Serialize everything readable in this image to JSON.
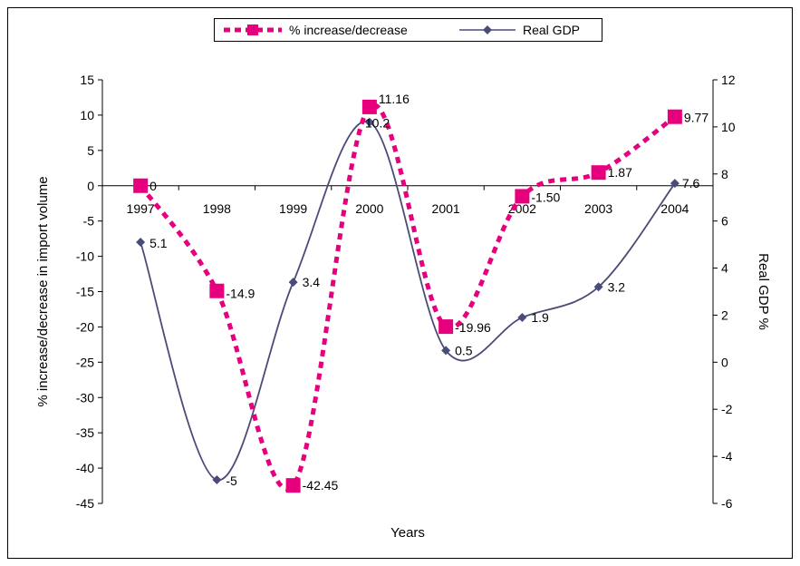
{
  "chart_data": {
    "type": "line",
    "x": [
      "1997",
      "1998",
      "1999",
      "2000",
      "2001",
      "2002",
      "2003",
      "2004"
    ],
    "xlabel": "Years",
    "ylabel_left": "% increase/decrease in import volume",
    "ylabel_right": "Real GDP %",
    "ylim_left": [
      -45,
      15
    ],
    "yticks_left": [
      "15",
      "10",
      "5",
      "0",
      "-5",
      "-10",
      "-15",
      "-20",
      "-25",
      "-30",
      "-35",
      "-40",
      "-45"
    ],
    "ylim_right": [
      -6,
      12
    ],
    "yticks_right": [
      "12",
      "10",
      "8",
      "6",
      "4",
      "2",
      "0",
      "-2",
      "-4",
      "-6"
    ],
    "grid": false,
    "legend_position": "top",
    "series": [
      {
        "name": "% increase/decrease",
        "axis": "left",
        "style": "dotted-square",
        "color": "#e6007e",
        "values": [
          0,
          -14.9,
          -42.45,
          11.16,
          -19.96,
          -1.5,
          1.87,
          9.77
        ],
        "labels": [
          "0",
          "-14.9",
          "-42.45",
          "11.16",
          "-19.96",
          "-1.50",
          "1.87",
          "9.77"
        ]
      },
      {
        "name": "Real GDP",
        "axis": "right",
        "style": "line-diamond",
        "color": "#4b4b7a",
        "values": [
          5.1,
          -5,
          3.4,
          10.2,
          0.5,
          1.9,
          3.2,
          7.6
        ],
        "labels": [
          "5.1",
          "-5",
          "3.4",
          "10.2",
          "0.5",
          "1.9",
          "3.2",
          "7.6"
        ]
      }
    ]
  }
}
